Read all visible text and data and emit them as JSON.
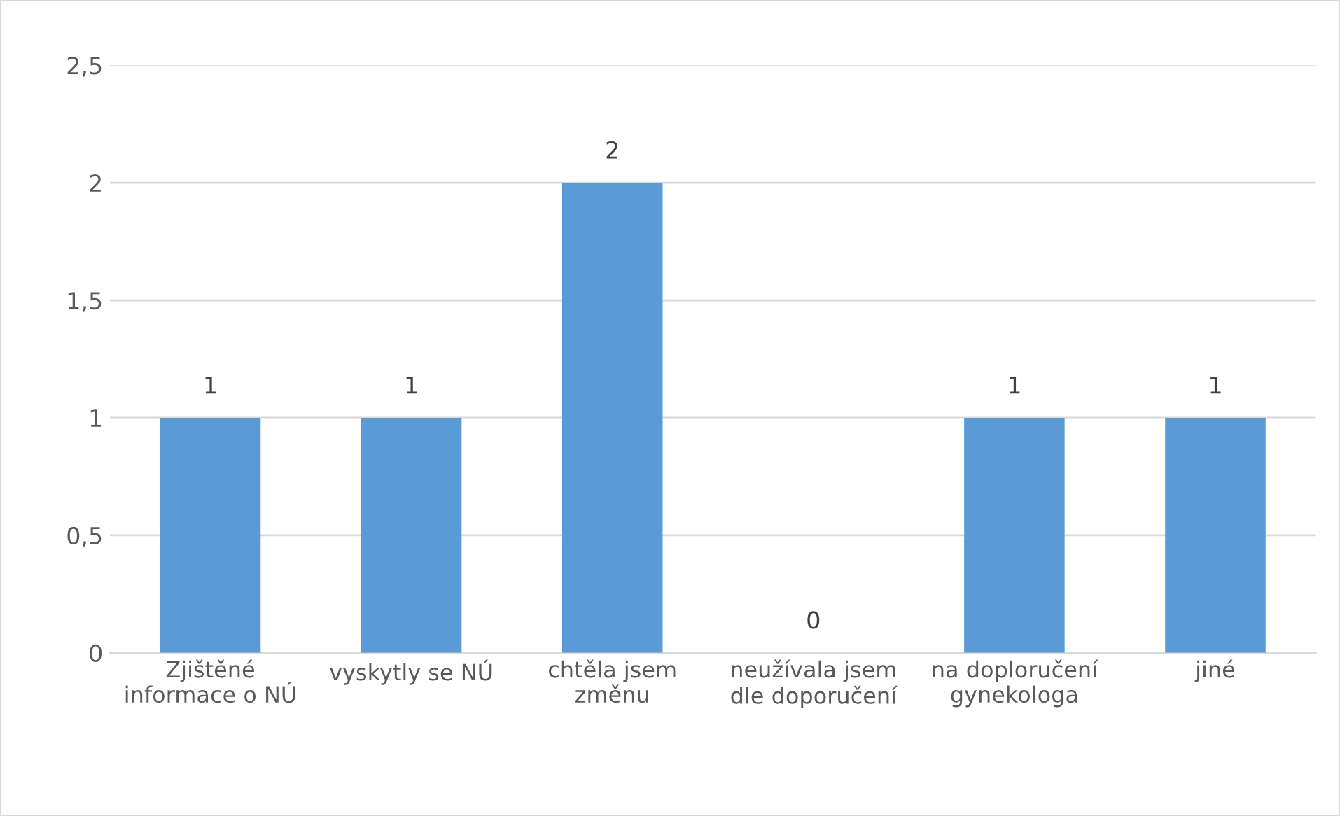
{
  "chart_data": {
    "type": "bar",
    "categories": [
      "Zjištěné informace o NÚ",
      "vyskytly se NÚ",
      "chtěla jsem změnu",
      "neužívala jsem dle doporučení",
      "na doploručení gynekologa",
      "jiné"
    ],
    "values": [
      1,
      1,
      2,
      0,
      1,
      1
    ],
    "color": "#5b9bd5",
    "ylim": [
      0,
      2.5
    ],
    "yticks": [
      0,
      {
        "value": 0.5,
        "label": "0,5"
      },
      1,
      {
        "value": 1.5,
        "label": "1,5"
      },
      2,
      {
        "value": 2.5,
        "label": "2,5"
      }
    ],
    "grid": "y",
    "data_labels": true
  }
}
